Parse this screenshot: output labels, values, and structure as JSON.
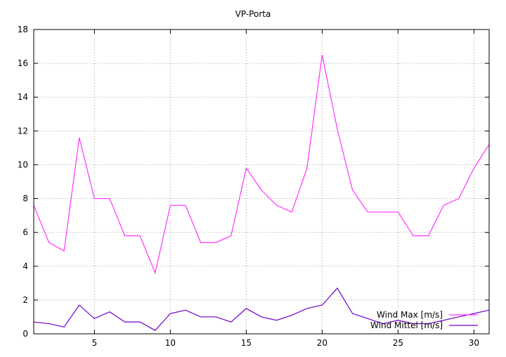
{
  "chart_data": {
    "type": "line",
    "title": "VP-Porta",
    "xlabel": "",
    "ylabel": "",
    "xlim": [
      1,
      31
    ],
    "ylim": [
      0,
      18
    ],
    "xticks": [
      5,
      10,
      15,
      20,
      25,
      30
    ],
    "yticks": [
      0,
      2,
      4,
      6,
      8,
      10,
      12,
      14,
      16,
      18
    ],
    "grid": true,
    "legend_position": "bottom-right",
    "x": [
      1,
      2,
      3,
      4,
      5,
      6,
      7,
      8,
      9,
      10,
      11,
      12,
      13,
      14,
      15,
      16,
      17,
      18,
      19,
      20,
      21,
      22,
      23,
      24,
      25,
      26,
      27,
      28,
      29,
      30,
      31
    ],
    "series": [
      {
        "name": "Wind Max [m/s]",
        "color": "#ff33ff",
        "values": [
          7.6,
          5.4,
          4.9,
          11.6,
          8.0,
          8.0,
          5.8,
          5.8,
          3.6,
          7.6,
          7.6,
          5.4,
          5.4,
          5.8,
          9.8,
          8.5,
          7.6,
          7.2,
          9.8,
          16.5,
          12.1,
          8.5,
          7.2,
          7.2,
          7.2,
          5.8,
          5.8,
          7.6,
          8.0,
          9.8,
          11.2
        ]
      },
      {
        "name": "Wind Mittel [m/s]",
        "color": "#7000cc",
        "values": [
          0.7,
          0.6,
          0.4,
          1.7,
          0.9,
          1.3,
          0.7,
          0.7,
          0.2,
          1.2,
          1.4,
          1.0,
          1.0,
          0.7,
          1.5,
          1.0,
          0.8,
          1.1,
          1.5,
          1.7,
          2.7,
          1.2,
          0.9,
          0.6,
          0.8,
          0.6,
          0.6,
          0.8,
          1.0,
          1.2,
          1.4
        ]
      }
    ]
  }
}
